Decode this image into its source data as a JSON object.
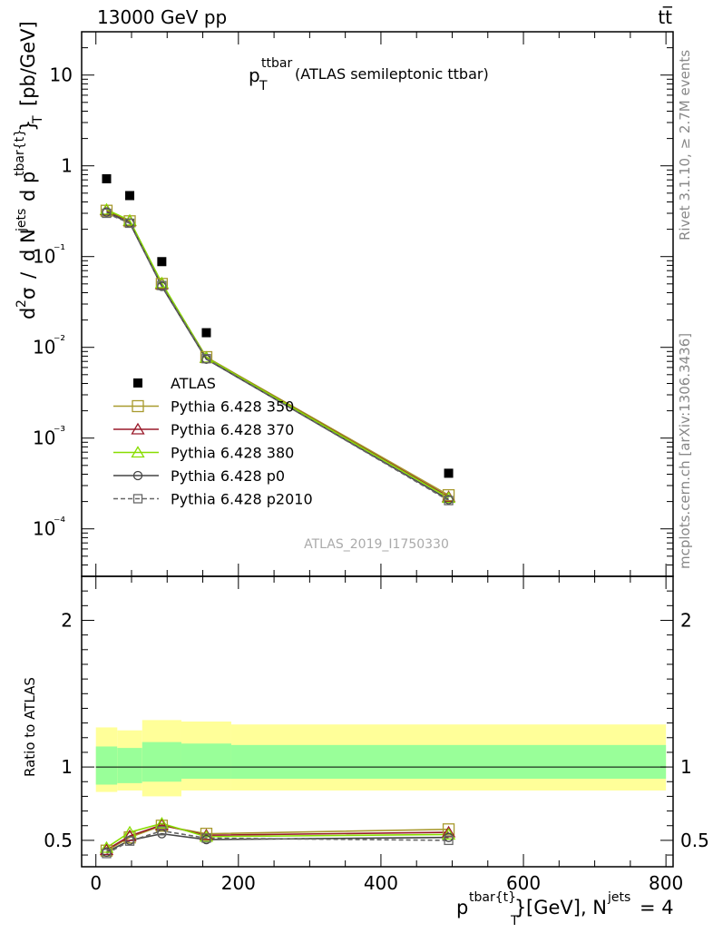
{
  "header": {
    "energy": "13000 GeV pp",
    "process": "tt̅"
  },
  "plot_title": {
    "symbol": "p",
    "superscript": "ttbar",
    "subscript": "T",
    "description": "(ATLAS semileptonic ttbar)"
  },
  "side_labels": {
    "rivet": "Rivet 3.1.10, ≥ 2.7M events",
    "mcplots": "mcplots.cern.ch [arXiv:1306.3436]"
  },
  "analysis_id": "ATLAS_2019_I1750330",
  "y_axis_label": {
    "d2": "d",
    "two": "2",
    "sigma": "σ",
    "slash": "/",
    "dN": "d N",
    "jets": "jets",
    "dp": "d p",
    "tbar": "tbar{t}",
    "brace": "}",
    "T": "T",
    "unit": "[pb/GeV]"
  },
  "ratio_label": "Ratio to ATLAS",
  "x_axis_label": {
    "p": "p",
    "sup": "tbar{t}",
    "brace": "}",
    "sub": "T",
    "rest": "[GeV], N",
    "jets": "jets",
    "eq": "= 4"
  },
  "colors": {
    "atlas": "#000000",
    "p350": "#a89a2e",
    "p370": "#9a1a2a",
    "p380": "#88dd00",
    "p0": "#444444",
    "p2010": "#666666",
    "band_inner": "#99ff99",
    "band_outer": "#ffff99"
  },
  "chart_data": [
    {
      "type": "scatter",
      "panel": "main",
      "x_range": [
        -20,
        810
      ],
      "y_range": [
        3e-05,
        30
      ],
      "y_scale": "log",
      "y_tick_labels": [
        "10",
        "1",
        "10⁻¹",
        "10⁻²",
        "10⁻³",
        "10⁻⁴"
      ],
      "x": [
        15,
        47.5,
        92.5,
        155,
        495
      ],
      "series": [
        {
          "name": "ATLAS",
          "key": "atlas",
          "marker": "filled-square",
          "values": [
            0.72,
            0.47,
            0.088,
            0.0145,
            0.00041
          ]
        },
        {
          "name": "Pythia 6.428 350",
          "key": "p350",
          "marker": "open-square",
          "values": [
            0.32,
            0.245,
            0.05,
            0.0078,
            0.000235
          ]
        },
        {
          "name": "Pythia 6.428 370",
          "key": "p370",
          "marker": "open-triangle",
          "values": [
            0.325,
            0.247,
            0.05,
            0.0077,
            0.000225
          ]
        },
        {
          "name": "Pythia 6.428 380",
          "key": "p380",
          "marker": "open-triangle",
          "values": [
            0.33,
            0.25,
            0.051,
            0.0077,
            0.00022
          ]
        },
        {
          "name": "Pythia 6.428 p0",
          "key": "p0",
          "marker": "open-circle",
          "values": [
            0.31,
            0.235,
            0.047,
            0.0074,
            0.00021
          ]
        },
        {
          "name": "Pythia 6.428 p2010",
          "key": "p2010",
          "marker": "open-square-dashed",
          "values": [
            0.3,
            0.233,
            0.048,
            0.0075,
            0.000205
          ]
        }
      ]
    },
    {
      "type": "line",
      "panel": "ratio",
      "x_range": [
        -20,
        810
      ],
      "y_range": [
        0.32,
        2.3
      ],
      "x_tick_labels": [
        "0",
        "200",
        "400",
        "600",
        "800"
      ],
      "y_tick_labels": [
        "0.5",
        "1",
        "2"
      ],
      "bin_edges": [
        0,
        30,
        65,
        120,
        190,
        800
      ],
      "band_inner": [
        [
          0.88,
          1.14
        ],
        [
          0.89,
          1.13
        ],
        [
          0.9,
          1.17
        ],
        [
          0.92,
          1.16
        ],
        [
          0.92,
          1.15
        ]
      ],
      "band_outer": [
        [
          0.83,
          1.27
        ],
        [
          0.84,
          1.25
        ],
        [
          0.8,
          1.32
        ],
        [
          0.84,
          1.31
        ],
        [
          0.84,
          1.29
        ]
      ],
      "x": [
        15,
        47.5,
        92.5,
        155,
        495
      ],
      "series": [
        {
          "name": "Pythia 6.428 350",
          "key": "p350",
          "values": [
            0.43,
            0.52,
            0.6,
            0.545,
            0.575
          ]
        },
        {
          "name": "Pythia 6.428 370",
          "key": "p370",
          "values": [
            0.435,
            0.53,
            0.605,
            0.535,
            0.555
          ]
        },
        {
          "name": "Pythia 6.428 380",
          "key": "p380",
          "values": [
            0.45,
            0.555,
            0.615,
            0.525,
            0.54
          ]
        },
        {
          "name": "Pythia 6.428 p0",
          "key": "p0",
          "values": [
            0.42,
            0.5,
            0.545,
            0.505,
            0.52
          ]
        },
        {
          "name": "Pythia 6.428 p2010",
          "key": "p2010",
          "values": [
            0.41,
            0.495,
            0.565,
            0.515,
            0.5
          ]
        }
      ]
    }
  ]
}
